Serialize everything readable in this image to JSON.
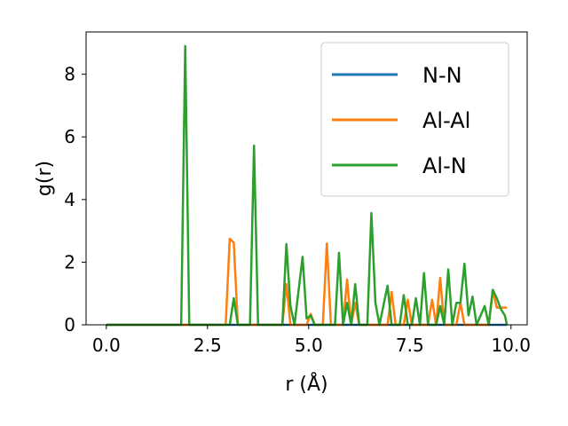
{
  "chart_data": {
    "type": "line",
    "xlabel": "r (Å)",
    "ylabel": "g(r)",
    "xlim": [
      -0.5,
      10.4
    ],
    "ylim": [
      0,
      9.35
    ],
    "xticks": [
      "0.0",
      "2.5",
      "5.0",
      "7.5",
      "10.0"
    ],
    "xtick_values": [
      0,
      2.5,
      5,
      7.5,
      10
    ],
    "yticks": [
      "0",
      "2",
      "4",
      "6",
      "8"
    ],
    "ytick_values": [
      0,
      2,
      4,
      6,
      8
    ],
    "legend_position": "top-right",
    "grid": false,
    "series": [
      {
        "name": "N-N",
        "color": "#1f77b4",
        "points": [
          [
            0,
            0
          ],
          [
            9.9,
            0
          ]
        ]
      },
      {
        "name": "Al-Al",
        "color": "#ff7f0e",
        "points": [
          [
            0,
            0
          ],
          [
            2.95,
            0
          ],
          [
            3.05,
            2.75
          ],
          [
            3.15,
            2.62
          ],
          [
            3.25,
            0
          ],
          [
            4.35,
            0
          ],
          [
            4.45,
            1.3
          ],
          [
            4.55,
            0
          ],
          [
            4.95,
            0
          ],
          [
            5.05,
            0.35
          ],
          [
            5.15,
            0
          ],
          [
            5.35,
            0
          ],
          [
            5.45,
            2.6
          ],
          [
            5.55,
            0
          ],
          [
            5.85,
            0
          ],
          [
            5.95,
            1.45
          ],
          [
            6.05,
            0
          ],
          [
            6.15,
            0.7
          ],
          [
            6.25,
            0
          ],
          [
            6.95,
            0
          ],
          [
            7.05,
            1.05
          ],
          [
            7.15,
            0
          ],
          [
            7.35,
            0
          ],
          [
            7.45,
            0.8
          ],
          [
            7.55,
            0
          ],
          [
            7.95,
            0
          ],
          [
            8.05,
            0.8
          ],
          [
            8.15,
            0
          ],
          [
            8.25,
            1.5
          ],
          [
            8.35,
            0
          ],
          [
            8.65,
            0
          ],
          [
            8.75,
            0.7
          ],
          [
            8.85,
            0
          ],
          [
            9.45,
            0
          ],
          [
            9.55,
            1.1
          ],
          [
            9.65,
            0.55
          ],
          [
            9.9,
            0.55
          ]
        ]
      },
      {
        "name": "Al-N",
        "color": "#2ca02c",
        "points": [
          [
            0,
            0
          ],
          [
            1.85,
            0
          ],
          [
            1.95,
            8.9
          ],
          [
            2.05,
            0
          ],
          [
            3.05,
            0
          ],
          [
            3.15,
            0.85
          ],
          [
            3.25,
            0
          ],
          [
            3.55,
            0
          ],
          [
            3.65,
            5.72
          ],
          [
            3.75,
            0
          ],
          [
            4.35,
            0
          ],
          [
            4.45,
            2.58
          ],
          [
            4.55,
            0.6
          ],
          [
            4.65,
            0
          ],
          [
            4.85,
            2.17
          ],
          [
            4.95,
            0.2
          ],
          [
            5.05,
            0.3
          ],
          [
            5.15,
            0
          ],
          [
            5.65,
            0
          ],
          [
            5.75,
            2.3
          ],
          [
            5.85,
            0
          ],
          [
            5.95,
            0.7
          ],
          [
            6.05,
            0
          ],
          [
            6.15,
            1.3
          ],
          [
            6.25,
            0
          ],
          [
            6.45,
            0
          ],
          [
            6.55,
            3.57
          ],
          [
            6.65,
            0.7
          ],
          [
            6.75,
            0
          ],
          [
            6.95,
            1.25
          ],
          [
            7.05,
            0
          ],
          [
            7.25,
            0
          ],
          [
            7.35,
            0.95
          ],
          [
            7.45,
            0
          ],
          [
            7.55,
            0
          ],
          [
            7.65,
            0.85
          ],
          [
            7.75,
            0
          ],
          [
            7.85,
            1.65
          ],
          [
            7.95,
            0
          ],
          [
            8.15,
            0
          ],
          [
            8.25,
            0.6
          ],
          [
            8.35,
            0
          ],
          [
            8.45,
            1.77
          ],
          [
            8.55,
            0
          ],
          [
            8.65,
            0.7
          ],
          [
            8.75,
            0.7
          ],
          [
            8.85,
            1.95
          ],
          [
            8.95,
            0.3
          ],
          [
            9.05,
            0.9
          ],
          [
            9.15,
            0
          ],
          [
            9.35,
            0.6
          ],
          [
            9.45,
            0
          ],
          [
            9.55,
            1.12
          ],
          [
            9.65,
            0.85
          ],
          [
            9.75,
            0.5
          ],
          [
            9.85,
            0.3
          ],
          [
            9.9,
            0
          ]
        ]
      }
    ]
  }
}
